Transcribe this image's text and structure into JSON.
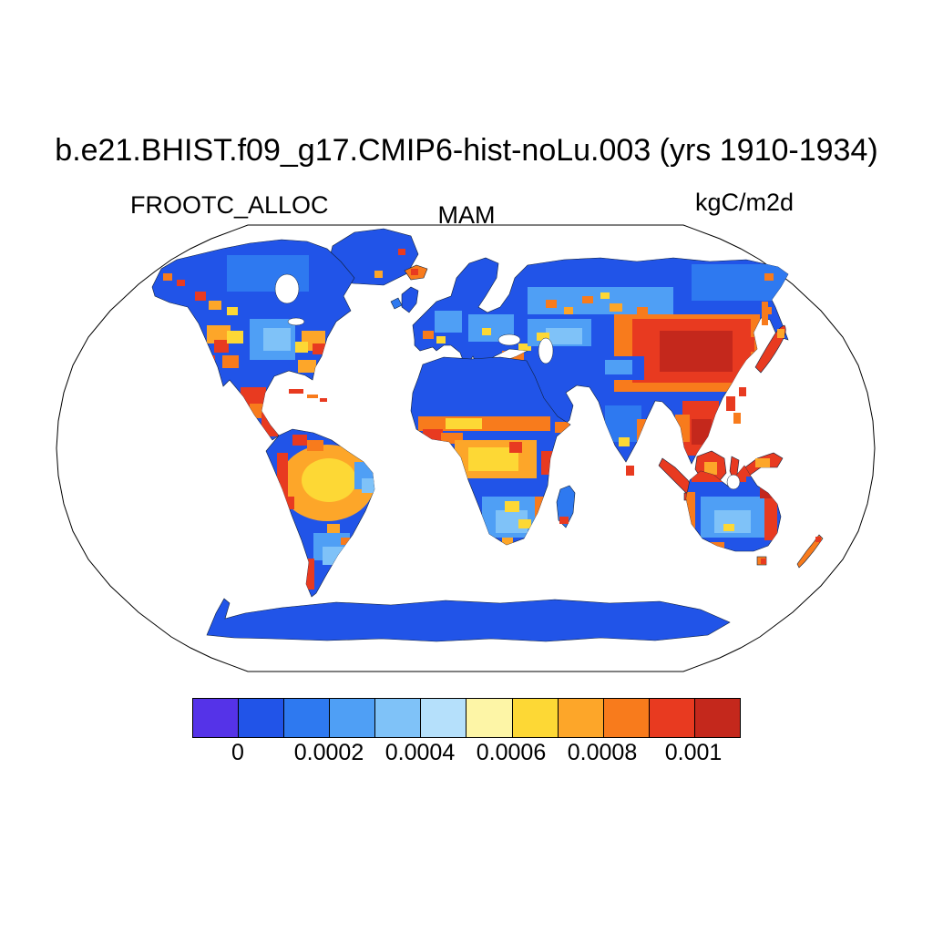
{
  "header": {
    "title": "b.e21.BHIST.f09_g17.CMIP6-hist-noLu.003 (yrs 1910-1934)",
    "variable": "FROOTC_ALLOC",
    "season": "MAM",
    "units": "kgC/m2d"
  },
  "chart_data": {
    "type": "heatmap",
    "projection": "robinson-world-map",
    "title": "b.e21.BHIST.f09_g17.CMIP6-hist-noLu.003 (yrs 1910-1934)",
    "variable": "FROOTC_ALLOC",
    "season": "MAM",
    "units": "kgC/m2d",
    "value_range": [
      0,
      0.001
    ],
    "colorbar": {
      "orientation": "horizontal",
      "segment_colors": [
        "#5533e8",
        "#2154e8",
        "#2e79f0",
        "#4f9ff5",
        "#7fc2f8",
        "#b5e0fb",
        "#fdf5a6",
        "#fdd835",
        "#fda629",
        "#f87b1c",
        "#e83a20",
        "#c4281c"
      ],
      "tick_labels": [
        "0",
        "0.0002",
        "0.0004",
        "0.0006",
        "0.0008",
        "0.001"
      ],
      "ticks_after_segment": [
        1,
        3,
        5,
        7,
        9,
        11
      ],
      "value_per_segment": 0.0001
    },
    "pattern_notes": {
      "high_value_regions": [
        "eastern China and Mongolia",
        "Southeast Asia",
        "Indonesia, New Guinea and Philippines",
        "Japan and Korea",
        "Amazon basin and Andes",
        "Sahel and Central Africa",
        "East African coast",
        "eastern United States",
        "western United States and Mexico",
        "Caribbean islands",
        "northern and eastern Australia rim",
        "New Zealand",
        "Iceland"
      ],
      "low_value_regions": [
        "high-latitude North America and Siberia",
        "Sahara and Arabian deserts",
        "Tibetan Plateau",
        "interior India",
        "central Australia",
        "Antarctica",
        "Greenland"
      ]
    }
  }
}
